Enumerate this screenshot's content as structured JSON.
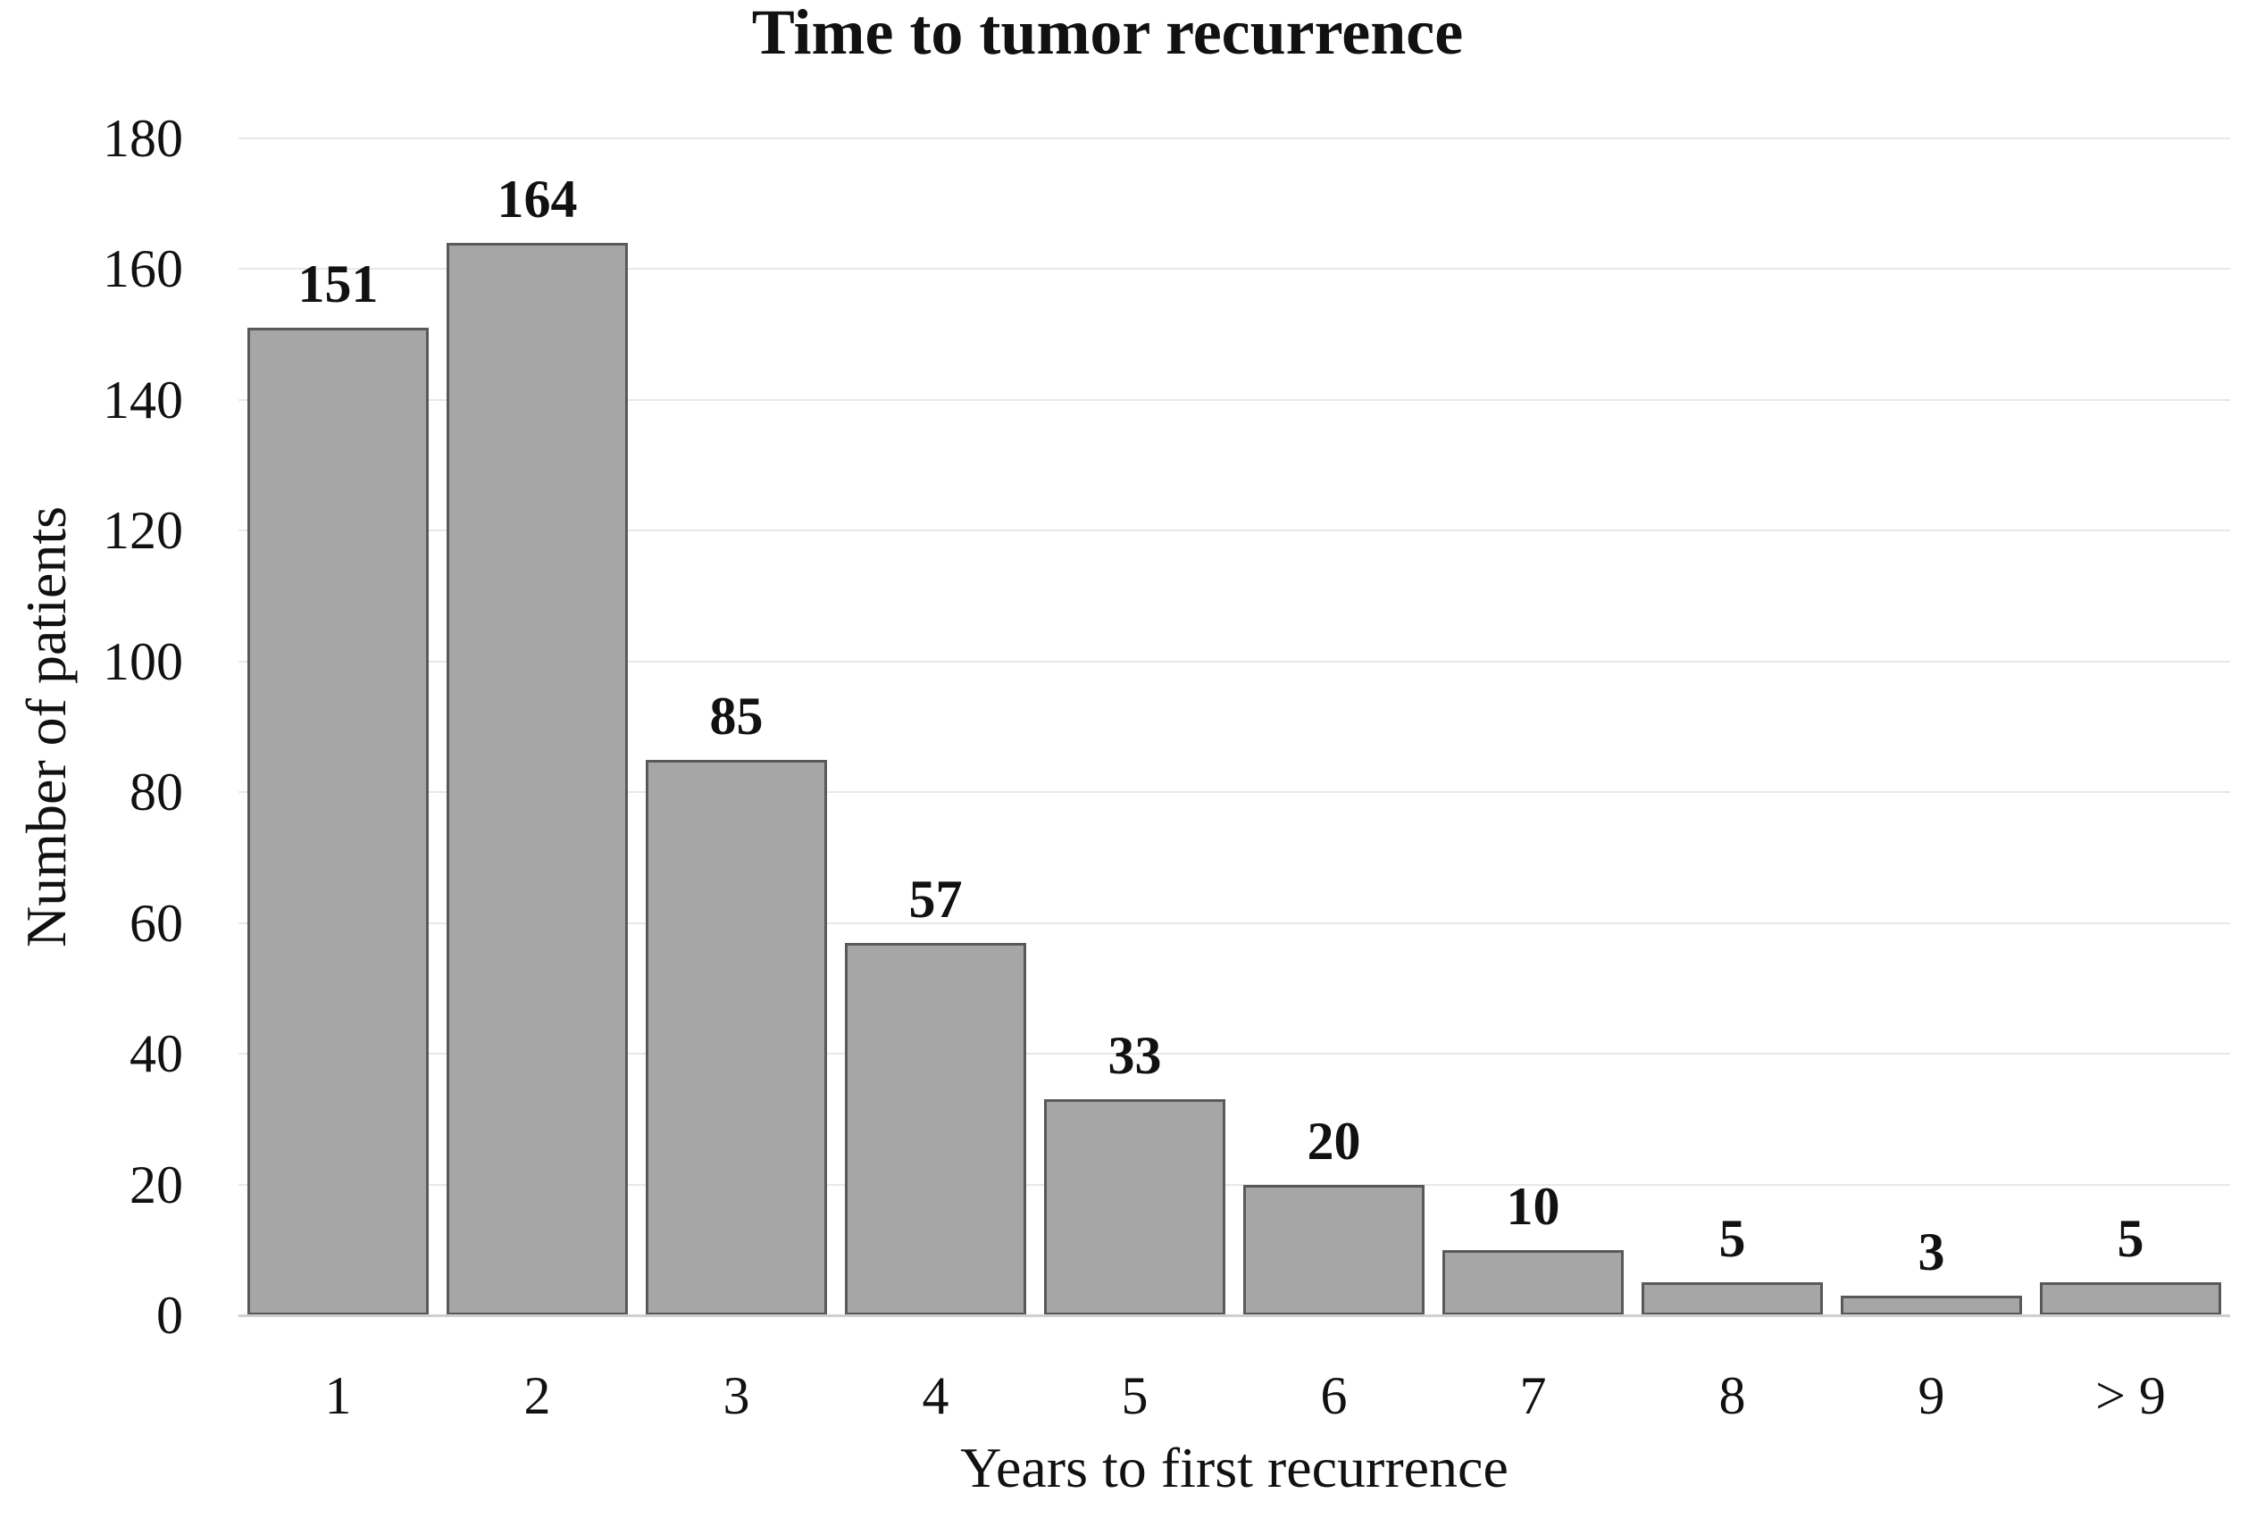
{
  "chart_data": {
    "type": "bar",
    "title": "Time to tumor recurrence",
    "categories": [
      "1",
      "2",
      "3",
      "4",
      "5",
      "6",
      "7",
      "8",
      "9",
      "> 9"
    ],
    "values": [
      151,
      164,
      85,
      57,
      33,
      20,
      10,
      5,
      3,
      5
    ],
    "xlabel": "Years to first recurrence",
    "ylabel": "Number of patients",
    "ylim": [
      0,
      180
    ],
    "yticks": [
      0,
      20,
      40,
      60,
      80,
      100,
      120,
      140,
      160,
      180
    ],
    "grid": "horizontal",
    "legend_position": "none",
    "data_labels": true,
    "colors": {
      "bar_fill": "#a6a6a6",
      "bar_border": "#595959",
      "gridline": "#e8e8e8",
      "axis_line": "#cfcfcf",
      "text": "#111111",
      "background": "#ffffff"
    }
  }
}
